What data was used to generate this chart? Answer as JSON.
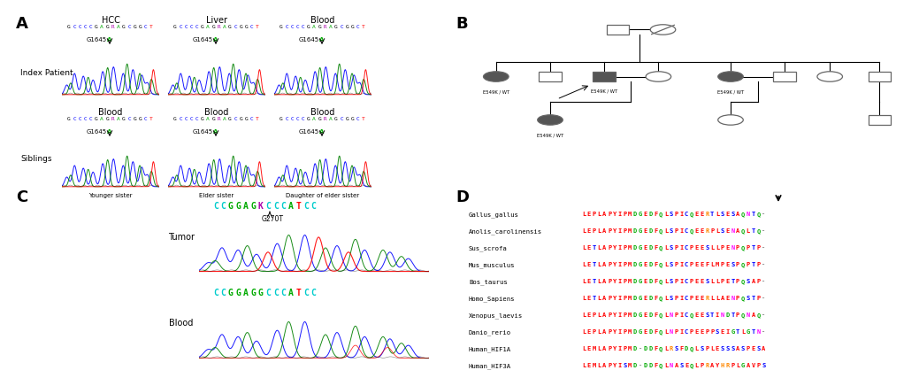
{
  "bg_color": "#ffffff",
  "panel_A": {
    "row1_titles": [
      "HCC",
      "Liver",
      "Blood"
    ],
    "row1_label": "Index Patient",
    "row2_titles": [
      "Blood",
      "Blood",
      "Blood"
    ],
    "row2_label": "Siblings",
    "row2_sublabels": [
      "Younger sister",
      "Elder sister",
      "Daughter of elder sister"
    ],
    "seq_label": "GCCCCGAGRAGCGGCT",
    "seq_colors": {
      "G": "#000000",
      "C": "#0000FF",
      "A": "#00AA00",
      "T": "#FF0000",
      "R": "#AA00AA"
    }
  },
  "panel_C": {
    "tumor_seq": "CCGGAGKCCCATCC",
    "blood_seq": "CCGGAGGCCCATCC",
    "tumor_label": "Tumor",
    "blood_label": "Blood",
    "mutation_label": "G270T",
    "seq_colors": {
      "C": "#00CCCC",
      "G": "#00AA00",
      "A": "#00AA00",
      "T": "#FF0000",
      "K": "#AA00AA",
      "R": "#00AA00"
    }
  },
  "panel_D": {
    "species": [
      "Gallus_gallus",
      "Anolis_carolinensis",
      "Sus_scrofa",
      "Mus_musculus",
      "Bos_taurus",
      "Homo_Sapiens",
      "Xenopus_laevis",
      "Danio_rerio",
      "Human_HIF1A",
      "Human_HIF3A"
    ],
    "sequences": [
      "LEPLAPYIPMDGEDFQLSPICQEERTLSESAQNTQ-",
      "LEPLAPYIPMDGEDFQLSPICQEERPLSENAQLTQ-",
      "LETLAPYIPMDGEDFQLSPICPEESLLPENPQPTP-",
      "LETLAPYIPMDGEDFQLSPICPEEFLMPESPQPTP-",
      "LETLAPYIPMDGEDFQLSPICPEESLLPETPQSAP-",
      "LETLAPYIPMDGEDFQLSPICPEERLLAENPQSTP-",
      "LEPLAPYIPMDGEDFQLNPICQEESTINDTPQNAQ-",
      "LEPLAPYIPMDGEDFQLNPICPEEPPSEIGTLGTN-",
      "LEMLAPYIPMD-DDFQLRSFDQLSPLESSSASPESA",
      "LEMLAPYISMD-DDFQLNASEQLPRAYHRPLGAVPS"
    ]
  }
}
